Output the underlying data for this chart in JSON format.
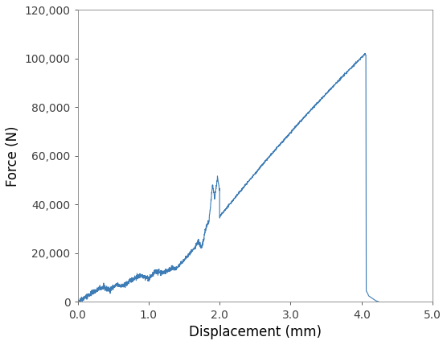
{
  "title": "",
  "xlabel": "Displacement (mm)",
  "ylabel": "Force (N)",
  "xlim": [
    0,
    5.0
  ],
  "ylim": [
    0,
    120000
  ],
  "xticks": [
    0.0,
    1.0,
    2.0,
    3.0,
    4.0,
    5.0
  ],
  "yticks": [
    0,
    20000,
    40000,
    60000,
    80000,
    100000,
    120000
  ],
  "line_color": "#3D7CB5",
  "line_width": 0.8,
  "background_color": "#ffffff",
  "xlabel_fontsize": 12,
  "ylabel_fontsize": 12,
  "tick_fontsize": 10,
  "spine_color": "#808080"
}
